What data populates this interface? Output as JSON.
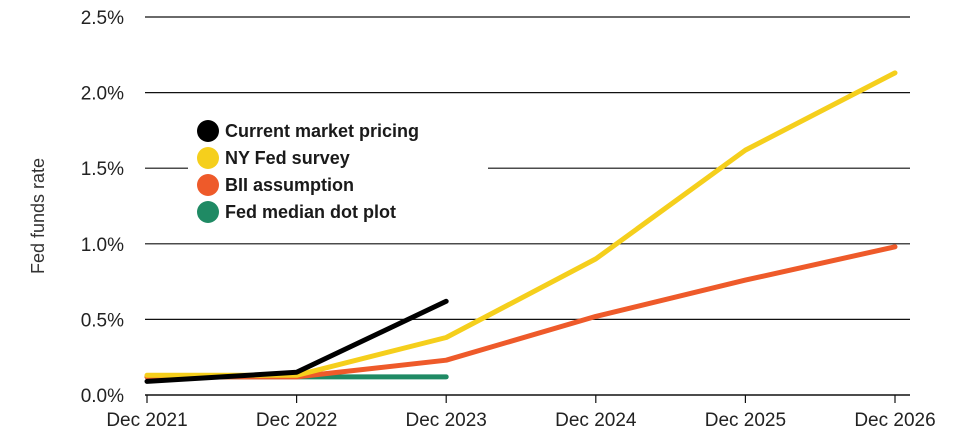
{
  "chart_data": {
    "type": "line",
    "title": "",
    "xlabel": "",
    "ylabel": "Fed funds rate",
    "categories": [
      "Dec 2021",
      "Dec 2022",
      "Dec 2023",
      "Dec 2024",
      "Dec 2025",
      "Dec 2026"
    ],
    "y_ticks": [
      "0.0%",
      "0.5%",
      "1.0%",
      "1.5%",
      "2.0%",
      "2.5%"
    ],
    "y_tick_values": [
      0,
      0.5,
      1.0,
      1.5,
      2.0,
      2.5
    ],
    "ylim": [
      0,
      2.5
    ],
    "xlim": [
      0,
      5
    ],
    "grid": "horizontal",
    "legend_position": "top-left",
    "series": [
      {
        "name": "Current market pricing",
        "color": "#000000",
        "x": [
          0,
          1,
          2
        ],
        "values": [
          0.09,
          0.15,
          0.62
        ]
      },
      {
        "name": "NY Fed survey",
        "color": "#f5cf1c",
        "x": [
          0,
          1,
          2,
          3,
          4,
          5
        ],
        "values": [
          0.13,
          0.13,
          0.38,
          0.9,
          1.62,
          2.13
        ]
      },
      {
        "name": "BII assumption",
        "color": "#ee5a2a",
        "x": [
          0,
          1,
          2,
          3,
          4,
          5
        ],
        "values": [
          0.12,
          0.12,
          0.23,
          0.52,
          0.76,
          0.98
        ]
      },
      {
        "name": "Fed median dot plot",
        "color": "#1f8a64",
        "x": [
          0,
          1,
          2
        ],
        "values": [
          0.12,
          0.12,
          0.12
        ]
      }
    ]
  }
}
